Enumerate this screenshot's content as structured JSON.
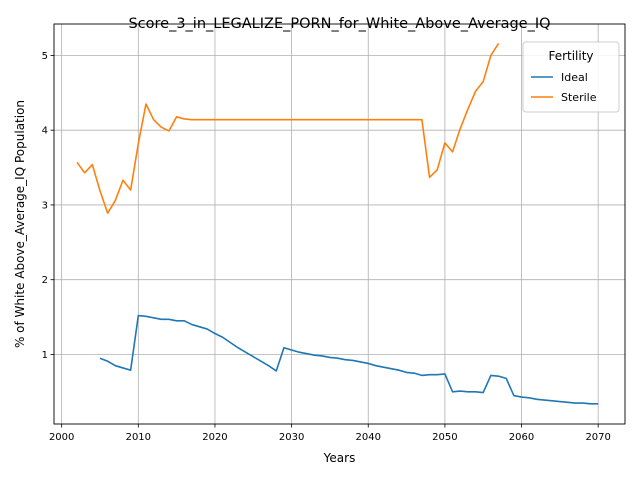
{
  "chart_data": {
    "type": "line",
    "title": "Score_3_in_LEGALIZE_PORN_for_White_Above_Average_IQ",
    "xlabel": "Years",
    "ylabel": "% of White Above_Average_IQ Population",
    "xlim": [
      1999,
      2073.5
    ],
    "ylim": [
      0.07,
      5.42
    ],
    "xticks": [
      2000,
      2010,
      2020,
      2030,
      2040,
      2050,
      2060,
      2070
    ],
    "yticks": [
      1,
      2,
      3,
      4,
      5
    ],
    "grid": true,
    "legend": {
      "title": "Fertility",
      "placement": "top-right"
    },
    "series": [
      {
        "name": "Ideal",
        "color": "#1f77b4",
        "x": [
          2005,
          2006,
          2007,
          2008,
          2009,
          2010,
          2011,
          2012,
          2013,
          2014,
          2015,
          2016,
          2017,
          2018,
          2019,
          2020,
          2021,
          2022,
          2023,
          2024,
          2025,
          2026,
          2027,
          2028,
          2029,
          2030,
          2031,
          2032,
          2033,
          2034,
          2035,
          2036,
          2037,
          2038,
          2039,
          2040,
          2041,
          2042,
          2043,
          2044,
          2045,
          2046,
          2047,
          2048,
          2049,
          2050,
          2051,
          2052,
          2053,
          2054,
          2055,
          2056,
          2057,
          2058,
          2059,
          2060,
          2061,
          2062,
          2063,
          2064,
          2065,
          2066,
          2067,
          2068,
          2069,
          2070
        ],
        "values": [
          0.95,
          0.91,
          0.85,
          0.82,
          0.79,
          1.52,
          1.51,
          1.49,
          1.47,
          1.47,
          1.45,
          1.45,
          1.4,
          1.37,
          1.34,
          1.28,
          1.23,
          1.16,
          1.09,
          1.03,
          0.97,
          0.91,
          0.85,
          0.78,
          1.09,
          1.06,
          1.03,
          1.01,
          0.99,
          0.98,
          0.96,
          0.95,
          0.93,
          0.92,
          0.9,
          0.88,
          0.85,
          0.83,
          0.81,
          0.79,
          0.76,
          0.75,
          0.72,
          0.73,
          0.73,
          0.74,
          0.5,
          0.51,
          0.5,
          0.5,
          0.49,
          0.72,
          0.71,
          0.68,
          0.45,
          0.43,
          0.42,
          0.4,
          0.39,
          0.38,
          0.37,
          0.36,
          0.35,
          0.35,
          0.34,
          0.34
        ]
      },
      {
        "name": "Sterile",
        "color": "#ff7f0e",
        "x": [
          2002,
          2003,
          2004,
          2005,
          2006,
          2007,
          2008,
          2009,
          2010,
          2011,
          2012,
          2013,
          2014,
          2015,
          2016,
          2017,
          2018,
          2019,
          2020,
          2021,
          2022,
          2023,
          2024,
          2025,
          2026,
          2027,
          2028,
          2029,
          2030,
          2031,
          2032,
          2033,
          2034,
          2035,
          2036,
          2037,
          2038,
          2039,
          2040,
          2041,
          2042,
          2043,
          2044,
          2045,
          2046,
          2047,
          2048,
          2049,
          2050,
          2051,
          2052,
          2053,
          2054,
          2055,
          2056,
          2057
        ],
        "values": [
          3.57,
          3.43,
          3.54,
          3.19,
          2.89,
          3.06,
          3.33,
          3.2,
          3.82,
          4.35,
          4.14,
          4.04,
          3.99,
          4.18,
          4.15,
          4.14,
          4.14,
          4.14,
          4.14,
          4.14,
          4.14,
          4.14,
          4.14,
          4.14,
          4.14,
          4.14,
          4.14,
          4.14,
          4.14,
          4.14,
          4.14,
          4.14,
          4.14,
          4.14,
          4.14,
          4.14,
          4.14,
          4.14,
          4.14,
          4.14,
          4.14,
          4.14,
          4.14,
          4.14,
          4.14,
          4.14,
          3.37,
          3.47,
          3.83,
          3.71,
          4.02,
          4.28,
          4.52,
          4.65,
          5.0,
          5.16
        ]
      }
    ]
  }
}
